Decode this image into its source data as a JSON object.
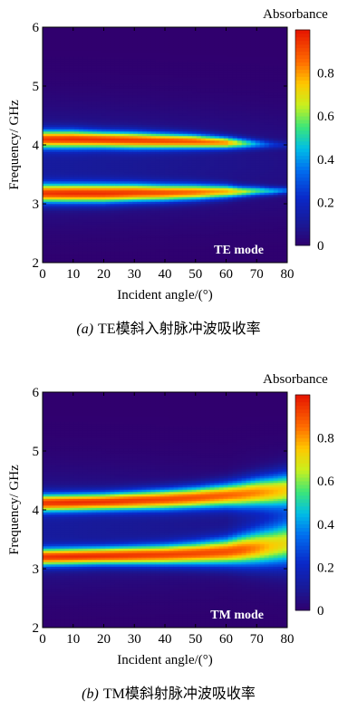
{
  "chart_data": [
    {
      "type": "heatmap",
      "panel": "a",
      "caption_letter": "(a)",
      "caption_text": "TE模斜入射脉冲波吸收率",
      "annotation": "TE mode",
      "xlabel": "Incident angle/(°)",
      "ylabel": "Frequency/ GHz",
      "colorbar_label": "Absorbance",
      "xlim": [
        0,
        80
      ],
      "ylim": [
        2,
        6
      ],
      "zlim": [
        0,
        1
      ],
      "x_ticks": [
        0,
        10,
        20,
        30,
        40,
        50,
        60,
        70,
        80
      ],
      "y_ticks": [
        2,
        3,
        4,
        5,
        6
      ],
      "colorbar_ticks": [
        0,
        0.2,
        0.4,
        0.6,
        0.8
      ],
      "bands": [
        {
          "angles": [
            0,
            10,
            20,
            30,
            40,
            50,
            60,
            65,
            70,
            75,
            80
          ],
          "center_ghz": [
            4.1,
            4.1,
            4.09,
            4.08,
            4.07,
            4.06,
            4.04,
            4.03,
            4.02,
            4.01,
            4.0
          ],
          "peak": [
            0.84,
            0.86,
            0.86,
            0.85,
            0.84,
            0.82,
            0.75,
            0.55,
            0.35,
            0.2,
            0.12
          ],
          "width_ghz": [
            0.15,
            0.15,
            0.14,
            0.14,
            0.13,
            0.12,
            0.1,
            0.09,
            0.08,
            0.07,
            0.06
          ]
        },
        {
          "angles": [
            0,
            10,
            20,
            30,
            40,
            50,
            60,
            65,
            70,
            75,
            80
          ],
          "center_ghz": [
            3.18,
            3.18,
            3.18,
            3.19,
            3.19,
            3.2,
            3.21,
            3.21,
            3.22,
            3.22,
            3.23
          ],
          "peak": [
            0.86,
            0.88,
            0.88,
            0.86,
            0.84,
            0.8,
            0.72,
            0.62,
            0.5,
            0.4,
            0.3
          ],
          "width_ghz": [
            0.16,
            0.16,
            0.16,
            0.15,
            0.14,
            0.13,
            0.11,
            0.09,
            0.08,
            0.07,
            0.06
          ]
        }
      ]
    },
    {
      "type": "heatmap",
      "panel": "b",
      "caption_letter": "(b)",
      "caption_text": "TM模斜射脉冲波吸收率",
      "annotation": "TM mode",
      "xlabel": "Incident angle/(°)",
      "ylabel": "Frequency/ GHz",
      "colorbar_label": "Absorbance",
      "xlim": [
        0,
        80
      ],
      "ylim": [
        2,
        6
      ],
      "zlim": [
        0,
        1
      ],
      "x_ticks": [
        0,
        10,
        20,
        30,
        40,
        50,
        60,
        70,
        80
      ],
      "y_ticks": [
        2,
        3,
        4,
        5,
        6
      ],
      "colorbar_ticks": [
        0,
        0.2,
        0.4,
        0.6,
        0.8
      ],
      "bands": [
        {
          "angles": [
            0,
            10,
            20,
            30,
            40,
            50,
            60,
            65,
            70,
            75,
            80
          ],
          "center_ghz": [
            4.12,
            4.13,
            4.14,
            4.16,
            4.18,
            4.21,
            4.25,
            4.27,
            4.3,
            4.32,
            4.35
          ],
          "peak": [
            0.85,
            0.87,
            0.87,
            0.86,
            0.85,
            0.84,
            0.82,
            0.78,
            0.74,
            0.68,
            0.62
          ],
          "width_ghz": [
            0.15,
            0.15,
            0.15,
            0.16,
            0.17,
            0.18,
            0.2,
            0.22,
            0.24,
            0.26,
            0.28
          ]
        },
        {
          "angles": [
            0,
            10,
            20,
            30,
            40,
            50,
            60,
            65,
            70,
            75,
            80
          ],
          "center_ghz": [
            3.2,
            3.21,
            3.22,
            3.23,
            3.24,
            3.26,
            3.29,
            3.32,
            3.35,
            3.38,
            3.42
          ],
          "peak": [
            0.86,
            0.88,
            0.88,
            0.87,
            0.86,
            0.85,
            0.84,
            0.8,
            0.72,
            0.62,
            0.55
          ],
          "width_ghz": [
            0.15,
            0.15,
            0.15,
            0.16,
            0.17,
            0.19,
            0.22,
            0.25,
            0.28,
            0.31,
            0.34
          ]
        }
      ]
    }
  ]
}
